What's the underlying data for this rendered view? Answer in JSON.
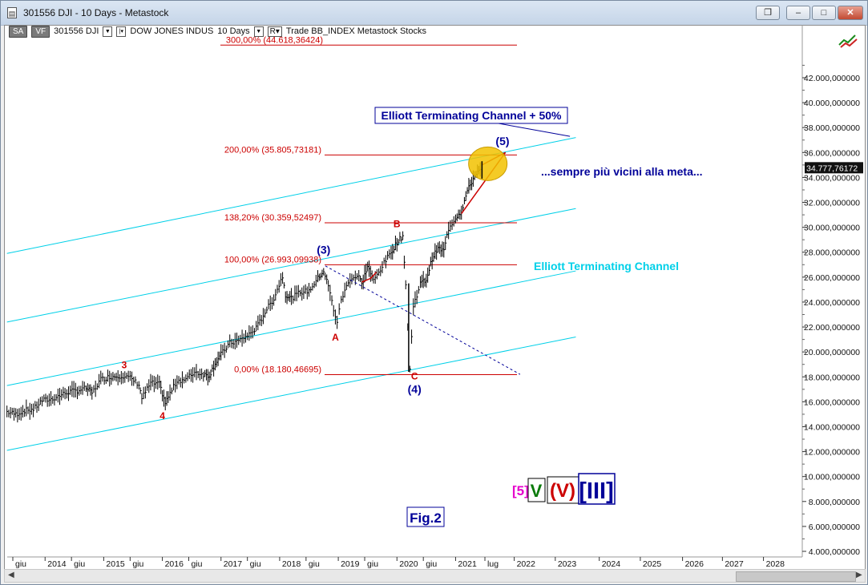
{
  "window": {
    "title": "301556 DJI - 10 Days - Metastock",
    "buttons": [
      "restore",
      "minimize",
      "maximize",
      "close"
    ]
  },
  "toolbar": {
    "sa_label": "SA",
    "vf_label": "VF",
    "symbol": "301556 DJI",
    "security_name": "DOW JONES INDUS",
    "periodicity": "10 Days",
    "r_label": "R",
    "rest": "Trade  BB_INDEX  Metastock  Stocks"
  },
  "chart_data": {
    "type": "line",
    "ylim": [
      4000000,
      46000000
    ],
    "y_ticks": [
      4000000,
      6000000,
      8000000,
      10000000,
      12000000,
      14000000,
      16000000,
      18000000,
      20000000,
      22000000,
      24000000,
      26000000,
      28000000,
      30000000,
      32000000,
      34000000,
      36000000,
      38000000,
      40000000,
      42000000
    ],
    "y_tick_labels": [
      "4.000,000000",
      "6.000,000000",
      "8.000,000000",
      "10.000,000000",
      "12.000,000000",
      "14.000,000000",
      "16.000,000000",
      "18.000,000000",
      "20.000,000000",
      "22.000,000000",
      "24.000,000000",
      "26.000,000000",
      "28.000,000000",
      "30.000,000000",
      "32.000,000000",
      "34.000,000000",
      "36.000,000000",
      "38.000,000000",
      "40.000,000000",
      "42.000,000000"
    ],
    "x_ticks": [
      {
        "label": "giu",
        "t": 2013.45
      },
      {
        "label": "2014",
        "t": 2014.0
      },
      {
        "label": "giu",
        "t": 2014.45
      },
      {
        "label": "2015",
        "t": 2015.0
      },
      {
        "label": "giu",
        "t": 2015.45
      },
      {
        "label": "2016",
        "t": 2016.0
      },
      {
        "label": "giu",
        "t": 2016.45
      },
      {
        "label": "2017",
        "t": 2017.0
      },
      {
        "label": "giu",
        "t": 2017.45
      },
      {
        "label": "2018",
        "t": 2018.0
      },
      {
        "label": "giu",
        "t": 2018.45
      },
      {
        "label": "2019",
        "t": 2019.0
      },
      {
        "label": "giu",
        "t": 2019.45
      },
      {
        "label": "2020",
        "t": 2020.0
      },
      {
        "label": "giu",
        "t": 2020.45
      },
      {
        "label": "2021",
        "t": 2021.0
      },
      {
        "label": "lug",
        "t": 2021.5
      },
      {
        "label": "2022",
        "t": 2022.0
      },
      {
        "label": "2023",
        "t": 2022.7
      },
      {
        "label": "2024",
        "t": 2023.45
      },
      {
        "label": "2025",
        "t": 2024.15
      },
      {
        "label": "2026",
        "t": 2024.87
      },
      {
        "label": "2027",
        "t": 2025.55
      },
      {
        "label": "2028",
        "t": 2026.25
      }
    ],
    "last_price_label": "34.777,76172",
    "last_price": 34777762,
    "price_series": [
      [
        2013.35,
        15200000
      ],
      [
        2013.5,
        15000000
      ],
      [
        2013.65,
        15300000
      ],
      [
        2013.8,
        15400000
      ],
      [
        2013.95,
        16100000
      ],
      [
        2014.1,
        16200000
      ],
      [
        2014.25,
        16500000
      ],
      [
        2014.4,
        16800000
      ],
      [
        2014.55,
        16900000
      ],
      [
        2014.7,
        17100000
      ],
      [
        2014.8,
        16700000
      ],
      [
        2014.95,
        17800000
      ],
      [
        2015.1,
        18000000
      ],
      [
        2015.3,
        18100000
      ],
      [
        2015.45,
        17900000
      ],
      [
        2015.6,
        17400000
      ],
      [
        2015.65,
        16300000
      ],
      [
        2015.8,
        17500000
      ],
      [
        2015.95,
        17400000
      ],
      [
        2016.05,
        15900000
      ],
      [
        2016.1,
        16400000
      ],
      [
        2016.25,
        17700000
      ],
      [
        2016.4,
        17800000
      ],
      [
        2016.55,
        18400000
      ],
      [
        2016.7,
        18200000
      ],
      [
        2016.8,
        18100000
      ],
      [
        2016.9,
        19100000
      ],
      [
        2017.0,
        19800000
      ],
      [
        2017.15,
        20700000
      ],
      [
        2017.3,
        20900000
      ],
      [
        2017.45,
        21300000
      ],
      [
        2017.6,
        21900000
      ],
      [
        2017.75,
        23200000
      ],
      [
        2017.9,
        24300000
      ],
      [
        2018.05,
        26100000
      ],
      [
        2018.1,
        24600000
      ],
      [
        2018.2,
        24300000
      ],
      [
        2018.35,
        24800000
      ],
      [
        2018.5,
        24900000
      ],
      [
        2018.65,
        25900000
      ],
      [
        2018.75,
        26500000
      ],
      [
        2018.83,
        25300000
      ],
      [
        2018.92,
        23400000
      ],
      [
        2018.98,
        22400000
      ],
      [
        2019.05,
        24200000
      ],
      [
        2019.2,
        25900000
      ],
      [
        2019.35,
        26100000
      ],
      [
        2019.4,
        25400000
      ],
      [
        2019.5,
        26900000
      ],
      [
        2019.6,
        25700000
      ],
      [
        2019.75,
        26900000
      ],
      [
        2019.9,
        28000000
      ],
      [
        2020.0,
        28800000
      ],
      [
        2020.1,
        29300000
      ],
      [
        2020.15,
        25400000
      ],
      [
        2020.22,
        18600000
      ],
      [
        2020.28,
        23700000
      ],
      [
        2020.4,
        25500000
      ],
      [
        2020.5,
        25800000
      ],
      [
        2020.6,
        27500000
      ],
      [
        2020.7,
        28300000
      ],
      [
        2020.8,
        28100000
      ],
      [
        2020.88,
        29900000
      ],
      [
        2021.0,
        30800000
      ],
      [
        2021.1,
        31300000
      ],
      [
        2021.2,
        32900000
      ],
      [
        2021.3,
        33900000
      ],
      [
        2021.35,
        34400000
      ],
      [
        2021.42,
        34500000
      ],
      [
        2021.45,
        34777762
      ]
    ],
    "fib_lines": [
      {
        "pct_label": "300,00% (44.618,36424)",
        "value": 44618364
      },
      {
        "pct_label": "200,00% (35.805,73181)",
        "value": 35805731
      },
      {
        "pct_label": "138,20% (30.359,52497)",
        "value": 30359525
      },
      {
        "pct_label": "100,00% (26.993,09938)",
        "value": 26993099
      },
      {
        "pct_label": "0,00% (18.180,46695)",
        "value": 18180467
      }
    ],
    "wave_labels_red": [
      {
        "text": "3",
        "t": 2015.35,
        "v": 18700000
      },
      {
        "text": "4",
        "t": 2016.0,
        "v": 14600000
      },
      {
        "text": "A",
        "t": 2018.95,
        "v": 20900000
      },
      {
        "text": "B",
        "t": 2020.0,
        "v": 30000000
      },
      {
        "text": "C",
        "t": 2020.3,
        "v": 17800000
      }
    ],
    "wave_labels_blue": [
      {
        "text": "(3)",
        "t": 2018.75,
        "v": 27900000
      },
      {
        "text": "(4)",
        "t": 2020.3,
        "v": 16700000
      },
      {
        "text": "(5)",
        "t": 2021.8,
        "v": 36600000
      }
    ],
    "annotations": {
      "channel_plus50": "Elliott Terminating Channel + 50%",
      "channel": "Elliott Terminating Channel",
      "comment": "...sempre più vicini alla meta...",
      "fig": "Fig.2"
    },
    "wave_degree_legend": {
      "minor": "[5]",
      "intermediate": "V",
      "primary": "(V)",
      "cycle": "[III]"
    },
    "colors": {
      "bars": "#000000",
      "channel": "#00d0e8",
      "fib": "#cc0000",
      "blue_label": "#000099",
      "red_label": "#cc0000",
      "target_circle": "#f2c200",
      "minor_label": "#e600cc",
      "intermediate_label": "#0a7a0a"
    }
  }
}
